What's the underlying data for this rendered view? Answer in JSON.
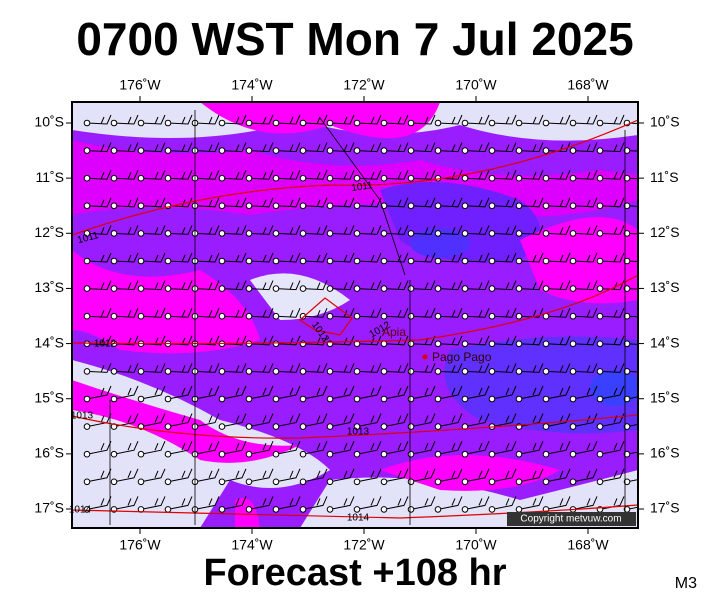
{
  "title": "0700 WST Mon 7 Jul 2025",
  "subtitle": "Forecast +108 hr",
  "corner_label": "M3",
  "copyright": "Copyright metvuw.com",
  "lon_ticks": [
    {
      "value": -176,
      "label": "176˚W"
    },
    {
      "value": -174,
      "label": "174˚W"
    },
    {
      "value": -172,
      "label": "172˚W"
    },
    {
      "value": -170,
      "label": "170˚W"
    },
    {
      "value": -168,
      "label": "168˚W"
    }
  ],
  "lat_ticks": [
    {
      "value": -10,
      "label": "10˚S"
    },
    {
      "value": -11,
      "label": "11˚S"
    },
    {
      "value": -12,
      "label": "12˚S"
    },
    {
      "value": -13,
      "label": "13˚S"
    },
    {
      "value": -14,
      "label": "14˚S"
    },
    {
      "value": -15,
      "label": "15˚S"
    },
    {
      "value": -16,
      "label": "16˚S"
    },
    {
      "value": -17,
      "label": "17˚S"
    }
  ],
  "places": [
    "Apia",
    "Pago Pago"
  ],
  "isobar_labels": [
    "1011",
    "1011",
    "1012",
    "1012",
    "1012",
    "1013",
    "1013",
    "1014",
    "1014"
  ]
}
